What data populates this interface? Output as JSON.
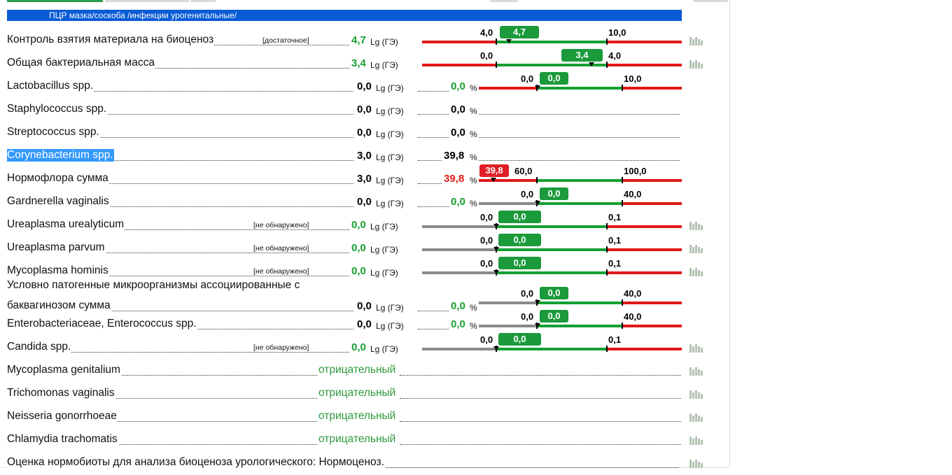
{
  "header": {
    "title": "ПЦР мазка/соскоба /инфекции урогенитальные/"
  },
  "rows": [
    {
      "name": "Контроль взятия материала на биоценоз",
      "note": "[достаточное]",
      "value": "4,7",
      "unit": "Lg (ГЭ)"
    },
    {
      "name": "Общая бактериальная масса",
      "value": "3,4",
      "unit": "Lg (ГЭ)"
    },
    {
      "name": "Lactobacillus spp.",
      "value": "0,0",
      "unit": "Lg (ГЭ)",
      "pct": "0,0",
      "pct_unit": "%"
    },
    {
      "name": "Staphylococcus spp.",
      "value": "0,0",
      "unit": "Lg (ГЭ)",
      "pct": "0,0",
      "pct_unit": "%"
    },
    {
      "name": "Streptococcus spp.",
      "value": "0,0",
      "unit": "Lg (ГЭ)",
      "pct": "0,0",
      "pct_unit": "%"
    },
    {
      "name": "Corynebacterium spp.",
      "value": "3,0",
      "unit": "Lg (ГЭ)",
      "pct": "39,8",
      "pct_unit": "%"
    },
    {
      "name": "Нормофлора сумма",
      "value": "3,0",
      "unit": "Lg (ГЭ)",
      "pct": "39,8",
      "pct_unit": "%"
    },
    {
      "name": "Gardnerella vaginalis",
      "value": "0,0",
      "unit": "Lg (ГЭ)",
      "pct": "0,0",
      "pct_unit": "%"
    },
    {
      "name": "Ureaplasma urealyticum",
      "note": "[не обнаружено]",
      "value": "0,0",
      "unit": "Lg (ГЭ)"
    },
    {
      "name": "Ureaplasma parvum",
      "note": "[не обнаружено]",
      "value": "0,0",
      "unit": "Lg (ГЭ)"
    },
    {
      "name": "Mycoplasma hominis",
      "note": "[не обнаружено]",
      "value": "0,0",
      "unit": "Lg (ГЭ)"
    },
    {
      "name_line1": "Условно патогенные микроорганизмы ассоциированные с",
      "name": "баквагинозом сумма",
      "value": "0,0",
      "unit": "Lg (ГЭ)",
      "pct": "0,0",
      "pct_unit": "%"
    },
    {
      "name": "Enterobacteriaceae, Enterococcus spp.",
      "value": "0,0",
      "unit": "Lg (ГЭ)",
      "pct": "0,0",
      "pct_unit": "%"
    },
    {
      "name": "Candida spp.",
      "note": "[не обнаружено]",
      "value": "0,0",
      "unit": "Lg (ГЭ)"
    },
    {
      "name": "Mycoplasma genitalium",
      "result": "отрицательный"
    },
    {
      "name": "Trichomonas vaginalis",
      "result": "отрицательный"
    },
    {
      "name": "Neisseria gonorrhoeae",
      "result": "отрицательный"
    },
    {
      "name": "Chlamydia trachomatis",
      "result": "отрицательный"
    },
    {
      "name": "Оценка нормобиоты для анализа биоценоза урологического: Нормоценоз."
    }
  ],
  "scales": [
    {
      "low_label": "4,0",
      "high_label": "10,0",
      "marker": "4,7",
      "status": "normal"
    },
    {
      "low_label": "0,0",
      "high_label": "4,0",
      "marker": "3,4",
      "status": "normal"
    },
    {
      "low_label": "0,0",
      "high_label": "10,0",
      "marker": "0,0",
      "status": "normal"
    },
    {
      "low_label": "60,0",
      "high_label": "100,0",
      "marker": "39,8",
      "status": "low"
    },
    {
      "low_label": "0,0",
      "high_label": "40,0",
      "marker": "0,0",
      "status": "normal"
    },
    {
      "low_label": "0,0",
      "high_label": "0,1",
      "marker": "0,0",
      "status": "normal"
    },
    {
      "low_label": "0,0",
      "high_label": "0,1",
      "marker": "0,0",
      "status": "normal"
    },
    {
      "low_label": "0,0",
      "high_label": "0,1",
      "marker": "0,0",
      "status": "normal"
    },
    {
      "low_label": "0,0",
      "high_label": "40,0",
      "marker": "0,0",
      "status": "normal"
    },
    {
      "low_label": "0,0",
      "high_label": "40,0",
      "marker": "0,0",
      "status": "normal"
    },
    {
      "low_label": "0,0",
      "high_label": "0,1",
      "marker": "0,0",
      "status": "normal"
    }
  ],
  "colors": {
    "header": "#0a5bd6",
    "good": "#14a032",
    "bad": "#e01818",
    "neutral": "#8a8a8a",
    "selection": "#3399ff"
  },
  "icons": {
    "history": "bar-chart-icon"
  }
}
